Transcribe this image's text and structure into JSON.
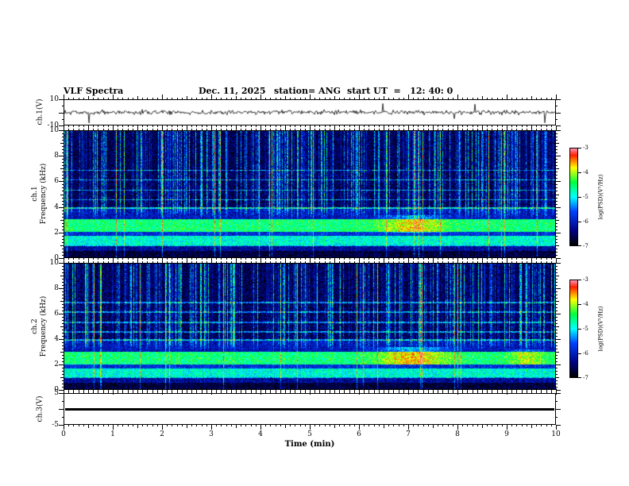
{
  "header": {
    "title": "VLF Spectra",
    "date": "Dec. 11, 2025",
    "station": "station= ANG",
    "start_ut": "start UT  =   12: 40: 0"
  },
  "xaxis": {
    "label": "Time (min)",
    "min": 0,
    "max": 10,
    "major_ticks": [
      0,
      1,
      2,
      3,
      4,
      5,
      6,
      7,
      8,
      9,
      10
    ]
  },
  "colors": {
    "background": "#ffffff",
    "axis": "#000000",
    "trace": "#000000",
    "colormap_stops": [
      {
        "v": 1.0,
        "hex": "#ff90b0"
      },
      {
        "v": 0.93,
        "hex": "#ff2000"
      },
      {
        "v": 0.8,
        "hex": "#ffff00"
      },
      {
        "v": 0.65,
        "hex": "#00ff40"
      },
      {
        "v": 0.5,
        "hex": "#00ffff"
      },
      {
        "v": 0.35,
        "hex": "#0040ff"
      },
      {
        "v": 0.15,
        "hex": "#000080"
      },
      {
        "v": 0.0,
        "hex": "#000000"
      }
    ]
  },
  "chart_data": [
    {
      "type": "line",
      "panel": "ch1_waveform",
      "ylabel": "ch.1(V)",
      "ylim": [
        -10,
        10
      ],
      "ytick_labels": [
        10,
        -10
      ],
      "xlim": [
        0,
        10
      ],
      "description": "broadband noise trace centered on 0 V, ~plus/minus 2 V, with sparse impulsive spikes to ~plus/minus 8 V"
    },
    {
      "type": "heatmap",
      "panel": "ch1_spectrogram",
      "ylabel_line1": "ch.1",
      "ylabel_line2": "Frequency (kHz)",
      "ylim": [
        0,
        10
      ],
      "ytick_labels": [
        10,
        8,
        6,
        4,
        2,
        0
      ],
      "xlim": [
        0,
        10
      ],
      "value_range": [
        -7,
        -3
      ],
      "colorbar": {
        "label": "log(PSD)(V²/Hz)",
        "ticks": [
          -3,
          -4,
          -5,
          -6,
          -7
        ]
      },
      "bands": [
        {
          "f_lo": 4.0,
          "f_hi": 10.0,
          "level": 0.1
        },
        {
          "f_lo": 3.05,
          "f_hi": 4.0,
          "level": 0.22
        },
        {
          "f_lo": 2.05,
          "f_hi": 3.05,
          "level": 0.6
        },
        {
          "f_lo": 1.75,
          "f_hi": 2.05,
          "level": 0.28
        },
        {
          "f_lo": 1.05,
          "f_hi": 1.75,
          "level": 0.52
        },
        {
          "f_lo": 0.6,
          "f_hi": 1.05,
          "level": 0.18
        },
        {
          "f_lo": 0.0,
          "f_hi": 0.6,
          "level": 0.06
        }
      ],
      "h_lines_kHz": [
        1.0,
        3.95,
        4.6,
        5.35,
        6.15,
        6.9
      ],
      "enhancements": [
        {
          "t_center_min": 7.1,
          "t_sigma_min": 0.45,
          "f_lo": 2.0,
          "f_hi": 3.4,
          "boost": 0.2
        }
      ],
      "description": "dense vertical sferic streaks above ~3.5 kHz on dark blue background; bright green hiss bands near 1-1.7 kHz and 2-3 kHz; enhancement around 6.6-7.7 min"
    },
    {
      "type": "heatmap",
      "panel": "ch2_spectrogram",
      "ylabel_line1": "ch.2",
      "ylabel_line2": "Frequency (kHz)",
      "ylim": [
        0,
        10
      ],
      "ytick_labels": [
        10,
        8,
        6,
        4,
        2,
        0
      ],
      "xlim": [
        0,
        10
      ],
      "value_range": [
        -7,
        -3
      ],
      "colorbar": {
        "label": "log(PSD)(V²/Hz)",
        "ticks": [
          -3,
          -4,
          -5,
          -6,
          -7
        ]
      },
      "bands": [
        {
          "f_lo": 4.0,
          "f_hi": 10.0,
          "level": 0.1
        },
        {
          "f_lo": 3.05,
          "f_hi": 4.0,
          "level": 0.22
        },
        {
          "f_lo": 2.05,
          "f_hi": 3.2,
          "level": 0.6
        },
        {
          "f_lo": 1.75,
          "f_hi": 2.05,
          "level": 0.28
        },
        {
          "f_lo": 1.05,
          "f_hi": 1.75,
          "level": 0.52
        },
        {
          "f_lo": 0.6,
          "f_hi": 1.05,
          "level": 0.18
        },
        {
          "f_lo": 0.0,
          "f_hi": 0.6,
          "level": 0.06
        }
      ],
      "h_lines_kHz": [
        1.0,
        3.95,
        4.6,
        5.35,
        6.15,
        6.9
      ],
      "enhancements": [
        {
          "t_center_min": 7.1,
          "t_sigma_min": 0.5,
          "f_lo": 2.0,
          "f_hi": 3.4,
          "boost": 0.22
        },
        {
          "t_center_min": 9.4,
          "t_sigma_min": 0.25,
          "f_lo": 2.0,
          "f_hi": 3.2,
          "boost": 0.15
        }
      ],
      "description": "same structure as ch.1: vertical sferic streaks above ~3.5 kHz, green hiss bands near 1-1.7 kHz and 2-3.2 kHz, enhancements near 7.1 min and 9.4 min"
    },
    {
      "type": "line",
      "panel": "ch3_waveform",
      "ylabel": "ch.3(V)",
      "ylim": [
        -5,
        5
      ],
      "ytick_labels": [
        5,
        -5
      ],
      "xlim": [
        0,
        10
      ],
      "constant_value": 0,
      "description": "flat trace at ~0 V for the entire record"
    }
  ]
}
